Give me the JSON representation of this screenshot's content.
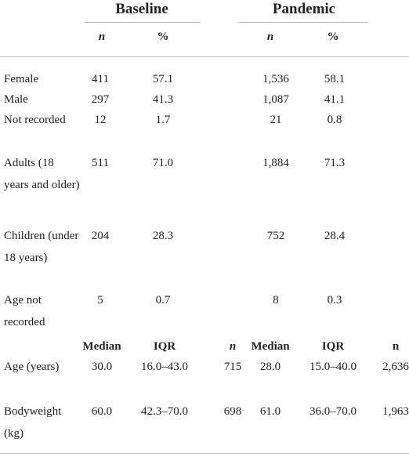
{
  "table": {
    "groups": [
      "Baseline",
      "Pandemic"
    ],
    "subheaders": [
      "n",
      "%",
      "n",
      "%"
    ],
    "rows": [
      [
        "Female",
        "411",
        "57.1",
        "1,536",
        "58.1"
      ],
      [
        "Male",
        "297",
        "41.3",
        "1,087",
        "41.1"
      ],
      [
        "Not recorded",
        "12",
        "1.7",
        "21",
        "0.8"
      ],
      [
        "Adults (18 years and older)",
        "511",
        "71.0",
        "1,884",
        "71.3"
      ],
      [
        "Children (under 18 years)",
        "204",
        "28.3",
        "752",
        "28.4"
      ],
      [
        "Age not recorded",
        "5",
        "0.7",
        "8",
        "0.3"
      ]
    ],
    "stats_header": [
      "Median",
      "IQR",
      "n",
      "Median",
      "IQR",
      "n"
    ],
    "stats_rows": [
      [
        "Age (years)",
        "30.0",
        "16.0–43.0",
        "715",
        "28.0",
        "15.0–40.0",
        "2,636"
      ],
      [
        "Bodyweight (kg)",
        "60.0",
        "42.3–70.0",
        "698",
        "61.0",
        "36.0–70.0",
        "1,963"
      ]
    ]
  }
}
